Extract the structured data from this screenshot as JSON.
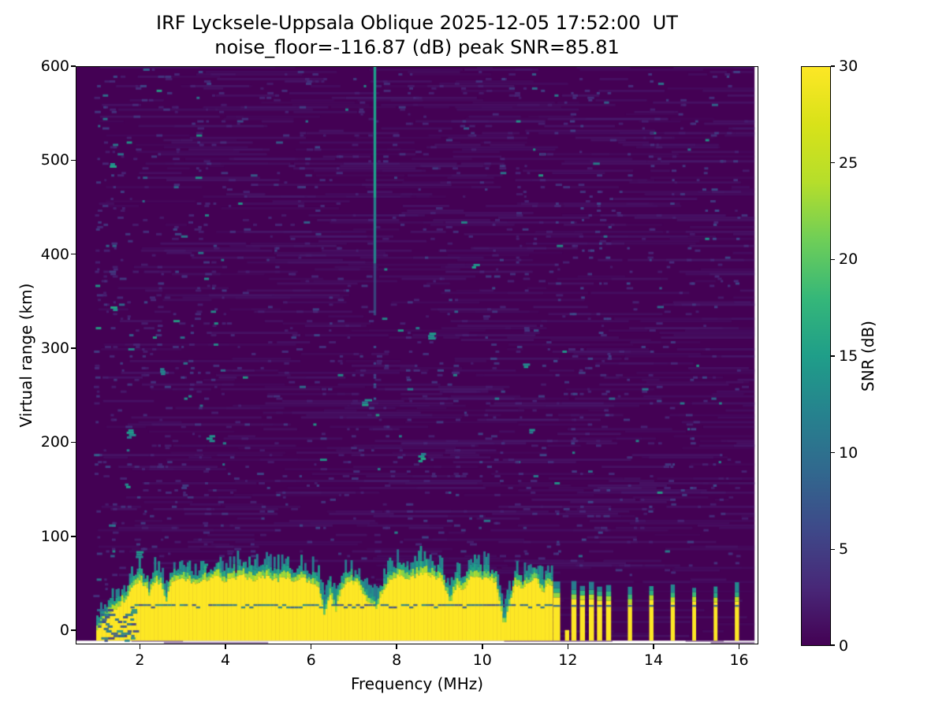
{
  "figure": {
    "title_line1": "IRF Lycksele-Uppsala Oblique 2025-12-05 17:52:00  UT",
    "title_line2": "noise_floor=-116.87 (dB) peak SNR=85.81",
    "background_color": "#ffffff",
    "text_color": "#000000"
  },
  "chart_data": {
    "type": "heatmap",
    "title": "IRF Lycksele-Uppsala Oblique 2025-12-05 17:52:00  UT",
    "subtitle": "noise_floor=-116.87 (dB) peak SNR=85.81",
    "station": "IRF Lycksele-Uppsala Oblique",
    "timestamp_ut": "2025-12-05 17:52:00 UT",
    "noise_floor_db": -116.87,
    "peak_snr_db": 85.81,
    "xlabel": "Frequency (MHz)",
    "ylabel": "Virtual range (km)",
    "colorbar_label": "SNR (dB)",
    "xlim": [
      0.5,
      16.45
    ],
    "ylim": [
      -15,
      600
    ],
    "clim": [
      0,
      30
    ],
    "x_ticks": [
      2,
      4,
      6,
      8,
      10,
      12,
      14,
      16
    ],
    "y_ticks": [
      0,
      100,
      200,
      300,
      400,
      500,
      600
    ],
    "colorbar_ticks": [
      0,
      5,
      10,
      15,
      20,
      25,
      30
    ],
    "grid": false,
    "legend": false,
    "colormap": "viridis",
    "viridis_stops": [
      "#440154",
      "#482878",
      "#3e4989",
      "#31688e",
      "#26828e",
      "#1f9e89",
      "#35b779",
      "#6ece58",
      "#b5de2b",
      "#d8e219",
      "#fde725"
    ],
    "data_extent": {
      "f_min": 0.5,
      "f_max": 16.36,
      "r_min_km": -11,
      "r_max_km": 600
    },
    "echo_band": {
      "f_start": 0.98,
      "f_end": 11.62,
      "base_km": -11,
      "stria_km": 27,
      "top_profile": [
        [
          0.98,
          2
        ],
        [
          1.05,
          6
        ],
        [
          1.15,
          12
        ],
        [
          1.3,
          18
        ],
        [
          1.45,
          24
        ],
        [
          1.6,
          30
        ],
        [
          1.72,
          36
        ],
        [
          1.78,
          47
        ],
        [
          1.9,
          50
        ],
        [
          2.0,
          52
        ],
        [
          2.1,
          48
        ],
        [
          2.2,
          38
        ],
        [
          2.3,
          52
        ],
        [
          2.45,
          50
        ],
        [
          2.6,
          33
        ],
        [
          2.7,
          50
        ],
        [
          2.85,
          52
        ],
        [
          3.0,
          55
        ],
        [
          3.2,
          50
        ],
        [
          3.4,
          53
        ],
        [
          3.6,
          55
        ],
        [
          3.8,
          57
        ],
        [
          4.0,
          52
        ],
        [
          4.2,
          55
        ],
        [
          4.4,
          58
        ],
        [
          4.6,
          53
        ],
        [
          4.8,
          56
        ],
        [
          5.0,
          57
        ],
        [
          5.2,
          53
        ],
        [
          5.4,
          56
        ],
        [
          5.6,
          52
        ],
        [
          5.8,
          55
        ],
        [
          6.0,
          51
        ],
        [
          6.15,
          46
        ],
        [
          6.3,
          14
        ],
        [
          6.42,
          40
        ],
        [
          6.55,
          20
        ],
        [
          6.7,
          46
        ],
        [
          6.9,
          52
        ],
        [
          7.1,
          48
        ],
        [
          7.3,
          30
        ],
        [
          7.5,
          24
        ],
        [
          7.65,
          40
        ],
        [
          7.8,
          54
        ],
        [
          8.0,
          58
        ],
        [
          8.2,
          55
        ],
        [
          8.4,
          58
        ],
        [
          8.6,
          61
        ],
        [
          8.8,
          57
        ],
        [
          9.0,
          55
        ],
        [
          9.25,
          30
        ],
        [
          9.4,
          50
        ],
        [
          9.55,
          42
        ],
        [
          9.7,
          55
        ],
        [
          9.9,
          57
        ],
        [
          10.1,
          55
        ],
        [
          10.3,
          52
        ],
        [
          10.5,
          4
        ],
        [
          10.62,
          30
        ],
        [
          10.75,
          50
        ],
        [
          10.9,
          46
        ],
        [
          11.1,
          52
        ],
        [
          11.25,
          55
        ],
        [
          11.4,
          40
        ],
        [
          11.5,
          48
        ],
        [
          11.62,
          46
        ]
      ]
    },
    "rfi_line": {
      "freq_mhz": 7.49,
      "segments": [
        {
          "r0_km": 600,
          "r1_km": 460,
          "snr_db": 15,
          "alpha": 1.0
        },
        {
          "r0_km": 460,
          "r1_km": 390,
          "snr_db": 12.5,
          "alpha": 0.95
        },
        {
          "r0_km": 390,
          "r1_km": 335,
          "snr_db": 8,
          "alpha": 0.7
        }
      ]
    },
    "channel_stripes_dense": [
      {
        "f": 11.74,
        "w": 0.16,
        "top_km": 34
      },
      {
        "f": 12.14,
        "w": 0.12,
        "top_km": 33
      },
      {
        "f": 12.34,
        "w": 0.12,
        "top_km": 32
      },
      {
        "f": 12.55,
        "w": 0.12,
        "top_km": 33
      },
      {
        "f": 12.74,
        "w": 0.12,
        "top_km": 32
      },
      {
        "f": 12.95,
        "w": 0.12,
        "top_km": 33
      }
    ],
    "channel_stripe_stub": {
      "f": 11.98,
      "w": 0.1,
      "top_km": 2
    },
    "channel_stripes_sparse": [
      {
        "f": 13.45,
        "w": 0.1,
        "top_km": 30
      },
      {
        "f": 13.95,
        "w": 0.1,
        "top_km": 31
      },
      {
        "f": 14.45,
        "w": 0.1,
        "top_km": 30
      },
      {
        "f": 14.95,
        "w": 0.09,
        "top_km": 29
      },
      {
        "f": 15.45,
        "w": 0.09,
        "top_km": 30
      },
      {
        "f": 15.95,
        "w": 0.1,
        "top_km": 30
      }
    ],
    "noise": {
      "seed": 7,
      "f_start": 1.0,
      "column_spacing_mhz": 0.182,
      "density_regions": [
        {
          "f0": 0.98,
          "f1": 1.8,
          "d": 0.85
        },
        {
          "f0": 1.8,
          "f1": 3.7,
          "d": 0.72
        },
        {
          "f0": 3.7,
          "f1": 6.2,
          "d": 0.45
        },
        {
          "f0": 6.2,
          "f1": 7.8,
          "d": 0.52
        },
        {
          "f0": 7.8,
          "f1": 11.6,
          "d": 0.55
        },
        {
          "f0": 11.6,
          "f1": 16.36,
          "d": 0.33
        }
      ]
    }
  }
}
